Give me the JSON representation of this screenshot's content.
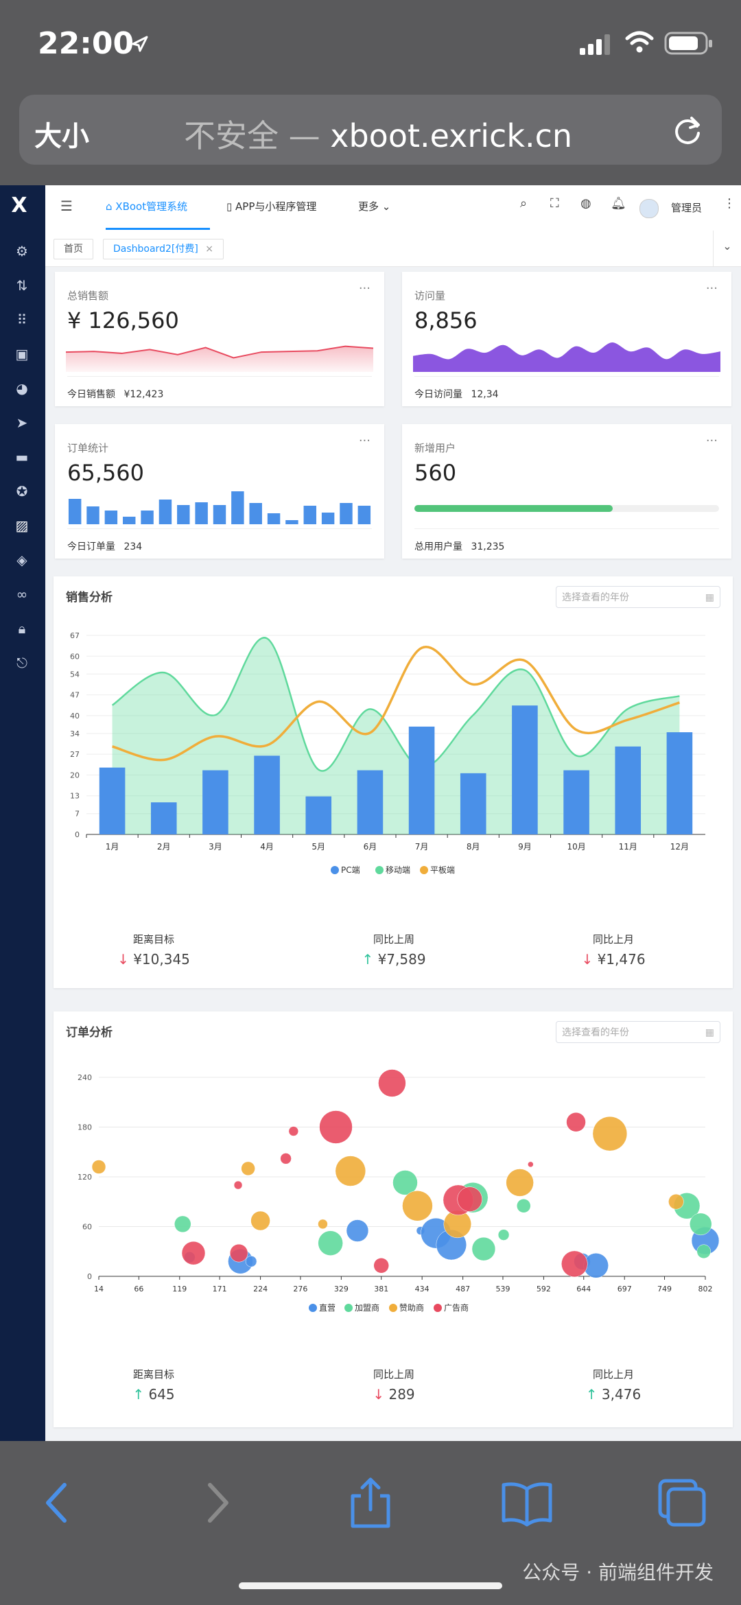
{
  "statusbar": {
    "time": "22:00"
  },
  "browser": {
    "text_size": "大小",
    "insecure": "不安全",
    "separator": "—",
    "domain": "xboot.exrick.cn"
  },
  "topbar": {
    "tabs": [
      {
        "label": "XBoot管理系统",
        "active": true
      },
      {
        "label": "APP与小程序管理",
        "active": false
      },
      {
        "label": "更多",
        "active": false
      }
    ],
    "user_name": "管理员"
  },
  "tags": [
    {
      "label": "首页",
      "active": false
    },
    {
      "label": "Dashboard2[付费]",
      "active": true
    }
  ],
  "cards": [
    {
      "title": "总销售额",
      "value": "¥ 126,560",
      "foot_label": "今日销售额",
      "foot_value": "¥12,423"
    },
    {
      "title": "访问量",
      "value": "8,856",
      "foot_label": "今日访问量",
      "foot_value": "12,34"
    },
    {
      "title": "订单统计",
      "value": "65,560",
      "foot_label": "今日订单量",
      "foot_value": "234"
    },
    {
      "title": "新增用户",
      "value": "560",
      "foot_label": "总用用户量",
      "foot_value": "31,235",
      "progress": 0.65
    }
  ],
  "sales": {
    "title": "销售分析",
    "date_placeholder": "选择查看的年份",
    "stats": [
      {
        "label": "距离目标",
        "value": "¥10,345",
        "dir": "down"
      },
      {
        "label": "同比上周",
        "value": "¥7,589",
        "dir": "up"
      },
      {
        "label": "同比上月",
        "value": "¥1,476",
        "dir": "down"
      }
    ]
  },
  "orders": {
    "title": "订单分析",
    "date_placeholder": "选择查看的年份",
    "stats": [
      {
        "label": "距离目标",
        "value": "645",
        "dir": "up"
      },
      {
        "label": "同比上周",
        "value": "289",
        "dir": "down"
      },
      {
        "label": "同比上月",
        "value": "3,476",
        "dir": "up"
      }
    ]
  },
  "watermark": "公众号 · 前端组件开发",
  "colors": {
    "blue": "#4a90e8",
    "green": "#5fd99c",
    "orange": "#f0ad3a",
    "red": "#e84a5f",
    "purple": "#8b56e0",
    "accent": "#1890ff"
  },
  "chart_data": [
    {
      "type": "line",
      "name": "total-sales-sparkline",
      "values": [
        31,
        32,
        29,
        35,
        27,
        38,
        22,
        31,
        32,
        33,
        40,
        37
      ],
      "ylim": [
        0,
        60
      ]
    },
    {
      "type": "area",
      "name": "visits-sparkline",
      "values": [
        25,
        28,
        20,
        36,
        30,
        42,
        26,
        35,
        22,
        40,
        30,
        46,
        32,
        38,
        20,
        35,
        28,
        32
      ],
      "ylim": [
        0,
        60
      ]
    },
    {
      "type": "bar",
      "name": "orders-sparkline",
      "values": [
        37,
        26,
        20,
        11,
        20,
        36,
        28,
        32,
        28,
        48,
        31,
        16,
        6,
        27,
        17,
        31,
        27
      ],
      "ylim": [
        0,
        50
      ]
    },
    {
      "type": "bar",
      "title": "销售分析",
      "categories": [
        "1月",
        "2月",
        "3月",
        "4月",
        "5月",
        "6月",
        "7月",
        "8月",
        "9月",
        "10月",
        "11月",
        "12月"
      ],
      "yticks": [
        "0",
        "7",
        "13",
        "20",
        "27",
        "34",
        "40",
        "47",
        "54",
        "60",
        "67"
      ],
      "ylim": [
        0,
        67
      ],
      "legend": "bottom",
      "series": [
        {
          "name": "PC端",
          "type": "bar",
          "color": "#4a90e8",
          "values": [
            22.5,
            10.8,
            21.6,
            26.5,
            12.8,
            21.6,
            36.3,
            20.6,
            43.4,
            21.6,
            29.6,
            34.4
          ]
        },
        {
          "name": "移动端",
          "type": "area",
          "color": "#5fd99c",
          "values": [
            43.5,
            54.5,
            40.2,
            66,
            21.8,
            42.2,
            22.5,
            40.2,
            55.3,
            26.5,
            42.3,
            46.6
          ]
        },
        {
          "name": "平板端",
          "type": "line",
          "color": "#f0ad3a",
          "values": [
            29.6,
            25.1,
            33,
            30,
            44.7,
            34.2,
            62.8,
            50.5,
            58.5,
            35.2,
            38.6,
            44.4
          ]
        }
      ]
    },
    {
      "type": "scatter",
      "title": "订单分析",
      "xticks": [
        "14",
        "66",
        "119",
        "171",
        "224",
        "276",
        "329",
        "381",
        "434",
        "487",
        "539",
        "592",
        "644",
        "697",
        "749",
        "802"
      ],
      "yticks": [
        "0",
        "60",
        "120",
        "180",
        "240"
      ],
      "xlim": [
        14,
        802
      ],
      "ylim": [
        0,
        240
      ],
      "legend": "bottom",
      "series": [
        {
          "name": "直营",
          "color": "#4a90e8",
          "points": [
            [
              132,
              23,
              8
            ],
            [
              198,
              18,
              18
            ],
            [
              212,
              18,
              8
            ],
            [
              350,
              55,
              16
            ],
            [
              432,
              55,
              6
            ],
            [
              452,
              52,
              22
            ],
            [
              472,
              38,
              22
            ],
            [
              642,
              18,
              12
            ],
            [
              660,
              13,
              18
            ],
            [
              802,
              43,
              20
            ]
          ]
        },
        {
          "name": "加盟商",
          "color": "#5fd99c",
          "points": [
            [
              123,
              63,
              12
            ],
            [
              315,
              40,
              18
            ],
            [
              412,
              113,
              18
            ],
            [
              500,
              95,
              22
            ],
            [
              514,
              33,
              17
            ],
            [
              540,
              50,
              8
            ],
            [
              566,
              85,
              10
            ],
            [
              778,
              85,
              19
            ],
            [
              796,
              63,
              16
            ],
            [
              800,
              30,
              10
            ]
          ]
        },
        {
          "name": "赞助商",
          "color": "#f0ad3a",
          "points": [
            [
              14,
              132,
              10
            ],
            [
              208,
              130,
              10
            ],
            [
              224,
              67,
              14
            ],
            [
              305,
              63,
              7
            ],
            [
              341,
              127,
              22
            ],
            [
              428,
              85,
              22
            ],
            [
              480,
              63,
              20
            ],
            [
              561,
              113,
              20
            ],
            [
              678,
              172,
              25
            ],
            [
              764,
              90,
              11
            ]
          ]
        },
        {
          "name": "广告商",
          "color": "#e84a5f",
          "points": [
            [
              137,
              28,
              17
            ],
            [
              196,
              28,
              13
            ],
            [
              195,
              110,
              6
            ],
            [
              257,
              142,
              8
            ],
            [
              267,
              175,
              7
            ],
            [
              322,
              180,
              24
            ],
            [
              381,
              13,
              11
            ],
            [
              395,
              233,
              20
            ],
            [
              481,
              92,
              22
            ],
            [
              496,
              93,
              18
            ],
            [
              575,
              135,
              4
            ],
            [
              634,
              186,
              14
            ],
            [
              632,
              15,
              19
            ]
          ]
        }
      ]
    }
  ]
}
